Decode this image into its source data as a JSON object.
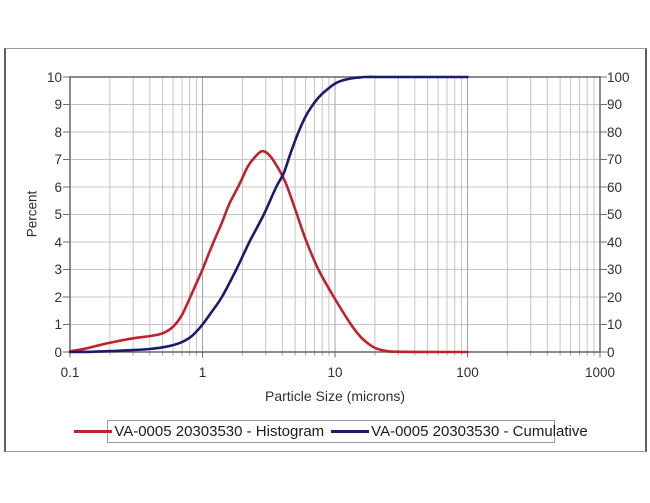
{
  "axes": {
    "y_left_title": "Percent",
    "x_title": "Particle Size (microns)"
  },
  "legend": {
    "items": [
      {
        "label": "VA-0005 20303530 - Histogram",
        "color": "#be232d"
      },
      {
        "label": "VA-0005 20303530 - Cumulative",
        "color": "#1b1b6e"
      }
    ]
  },
  "colors": {
    "grid_minor": "#c4c4c4",
    "grid_major": "#a4a4a4",
    "plot_border": "#6e6e6e",
    "tick": "#6e6e6e",
    "histogram": "#be232d",
    "cumulative": "#1b1b6e"
  },
  "chart_data": {
    "type": "line",
    "title": "",
    "xlabel": "Particle Size (microns)",
    "ylabel": "Percent",
    "x_scale": "log",
    "x_range": [
      0.1,
      1000
    ],
    "x_ticks": [
      0.1,
      1,
      10,
      100,
      1000
    ],
    "grid": "major and log-minor gridlines on, light gray",
    "legend_position": "bottom",
    "y_left": {
      "label": "Percent",
      "range": [
        0,
        10
      ],
      "ticks": [
        0,
        1,
        2,
        3,
        4,
        5,
        6,
        7,
        8,
        9,
        10
      ]
    },
    "y_right": {
      "label": "",
      "range": [
        0,
        100
      ],
      "ticks": [
        0,
        10,
        20,
        30,
        40,
        50,
        60,
        70,
        80,
        90,
        100
      ]
    },
    "series": [
      {
        "name": "VA-0005 20303530 - Histogram",
        "axis": "left",
        "color": "#be232d",
        "points": [
          [
            0.1,
            0.02
          ],
          [
            0.13,
            0.12
          ],
          [
            0.17,
            0.26
          ],
          [
            0.22,
            0.38
          ],
          [
            0.3,
            0.5
          ],
          [
            0.4,
            0.58
          ],
          [
            0.5,
            0.68
          ],
          [
            0.6,
            0.92
          ],
          [
            0.7,
            1.35
          ],
          [
            0.8,
            1.95
          ],
          [
            0.9,
            2.5
          ],
          [
            1.0,
            3.0
          ],
          [
            1.12,
            3.6
          ],
          [
            1.25,
            4.15
          ],
          [
            1.4,
            4.7
          ],
          [
            1.6,
            5.4
          ],
          [
            1.9,
            6.1
          ],
          [
            2.2,
            6.75
          ],
          [
            2.5,
            7.1
          ],
          [
            2.8,
            7.3
          ],
          [
            3.1,
            7.22
          ],
          [
            3.5,
            6.9
          ],
          [
            4.2,
            6.2
          ],
          [
            5.0,
            5.2
          ],
          [
            6.0,
            4.1
          ],
          [
            7.5,
            3.0
          ],
          [
            9.8,
            2.0
          ],
          [
            13.2,
            1.0
          ],
          [
            16,
            0.5
          ],
          [
            20,
            0.15
          ],
          [
            25,
            0.03
          ],
          [
            30,
            0.01
          ],
          [
            60,
            0
          ],
          [
            100,
            0
          ]
        ]
      },
      {
        "name": "VA-0005 20303530 - Cumulative",
        "axis": "right",
        "color": "#1b1b6e",
        "points": [
          [
            0.1,
            0
          ],
          [
            0.13,
            0.05
          ],
          [
            0.17,
            0.2
          ],
          [
            0.22,
            0.4
          ],
          [
            0.3,
            0.7
          ],
          [
            0.4,
            1.1
          ],
          [
            0.5,
            1.7
          ],
          [
            0.6,
            2.5
          ],
          [
            0.7,
            3.6
          ],
          [
            0.8,
            5.2
          ],
          [
            0.9,
            7.4
          ],
          [
            1.0,
            10
          ],
          [
            1.15,
            14
          ],
          [
            1.4,
            20
          ],
          [
            1.8,
            30
          ],
          [
            2.26,
            40
          ],
          [
            2.9,
            50
          ],
          [
            3.6,
            60
          ],
          [
            4.1,
            65
          ],
          [
            4.6,
            72
          ],
          [
            5.2,
            79
          ],
          [
            5.9,
            85
          ],
          [
            6.6,
            89
          ],
          [
            7.5,
            92.5
          ],
          [
            8.5,
            95
          ],
          [
            10,
            97.6
          ],
          [
            11.5,
            98.8
          ],
          [
            13,
            99.4
          ],
          [
            15,
            99.8
          ],
          [
            17,
            100
          ],
          [
            22,
            100
          ],
          [
            40,
            100
          ],
          [
            100,
            100
          ]
        ]
      }
    ]
  }
}
